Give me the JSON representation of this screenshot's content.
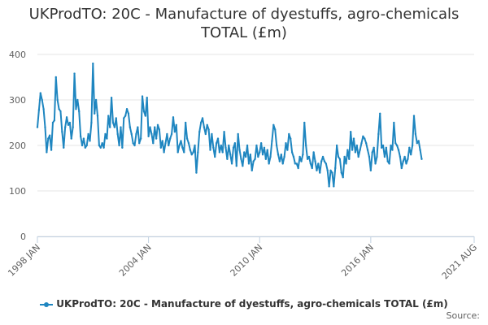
{
  "chart_data": {
    "type": "line",
    "title_line1": "UKProdTO: 20C - Manufacture of dyestuffs, agro-chemicals",
    "title_line2": "TOTAL (£m)",
    "xlabel": "",
    "ylabel": "",
    "ylim": [
      0,
      400
    ],
    "yticks": [
      0,
      100,
      200,
      300,
      400
    ],
    "x_start": "1998-01",
    "x_end": "2021-08",
    "xticks": [
      {
        "label": "1998 JAN",
        "month_index": 0
      },
      {
        "label": "2004 JAN",
        "month_index": 72
      },
      {
        "label": "2010 JAN",
        "month_index": 144
      },
      {
        "label": "2016 JAN",
        "month_index": 216
      },
      {
        "label": "2021 AUG",
        "month_index": 283
      }
    ],
    "grid": true,
    "legend_position": "bottom",
    "color": "#1f86c0",
    "series": [
      {
        "name": "UKProdTO: 20C - Manufacture of dyestuffs, agro-chemicals TOTAL (£m)",
        "anchors": [
          [
            0,
            240
          ],
          [
            1,
            278
          ],
          [
            2,
            315
          ],
          [
            3,
            300
          ],
          [
            4,
            280
          ],
          [
            5,
            240
          ],
          [
            6,
            185
          ],
          [
            7,
            215
          ],
          [
            8,
            222
          ],
          [
            9,
            190
          ],
          [
            10,
            250
          ],
          [
            11,
            255
          ],
          [
            12,
            350
          ],
          [
            13,
            300
          ],
          [
            14,
            280
          ],
          [
            15,
            275
          ],
          [
            16,
            230
          ],
          [
            17,
            195
          ],
          [
            18,
            240
          ],
          [
            19,
            262
          ],
          [
            20,
            245
          ],
          [
            21,
            250
          ],
          [
            22,
            215
          ],
          [
            23,
            240
          ],
          [
            24,
            358
          ],
          [
            25,
            280
          ],
          [
            26,
            300
          ],
          [
            27,
            275
          ],
          [
            28,
            220
          ],
          [
            29,
            200
          ],
          [
            30,
            215
          ],
          [
            31,
            195
          ],
          [
            32,
            200
          ],
          [
            33,
            225
          ],
          [
            34,
            210
          ],
          [
            35,
            250
          ],
          [
            36,
            380
          ],
          [
            37,
            270
          ],
          [
            38,
            300
          ],
          [
            39,
            265
          ],
          [
            40,
            200
          ],
          [
            41,
            195
          ],
          [
            42,
            205
          ],
          [
            43,
            195
          ],
          [
            44,
            225
          ],
          [
            45,
            215
          ],
          [
            46,
            265
          ],
          [
            47,
            240
          ],
          [
            48,
            305
          ],
          [
            49,
            250
          ],
          [
            50,
            240
          ],
          [
            51,
            260
          ],
          [
            52,
            225
          ],
          [
            53,
            200
          ],
          [
            54,
            240
          ],
          [
            55,
            195
          ],
          [
            56,
            260
          ],
          [
            57,
            265
          ],
          [
            58,
            280
          ],
          [
            59,
            270
          ],
          [
            60,
            240
          ],
          [
            61,
            225
          ],
          [
            62,
            205
          ],
          [
            63,
            200
          ],
          [
            64,
            225
          ],
          [
            65,
            240
          ],
          [
            66,
            205
          ],
          [
            67,
            215
          ],
          [
            68,
            308
          ],
          [
            69,
            275
          ],
          [
            70,
            265
          ],
          [
            71,
            305
          ],
          [
            72,
            220
          ],
          [
            73,
            240
          ],
          [
            74,
            225
          ],
          [
            75,
            205
          ],
          [
            76,
            240
          ],
          [
            77,
            215
          ],
          [
            78,
            245
          ],
          [
            79,
            235
          ],
          [
            80,
            195
          ],
          [
            81,
            210
          ],
          [
            82,
            185
          ],
          [
            83,
            205
          ],
          [
            84,
            225
          ],
          [
            85,
            200
          ],
          [
            86,
            215
          ],
          [
            87,
            225
          ],
          [
            88,
            262
          ],
          [
            89,
            230
          ],
          [
            90,
            245
          ],
          [
            91,
            185
          ],
          [
            92,
            200
          ],
          [
            93,
            210
          ],
          [
            94,
            195
          ],
          [
            95,
            185
          ],
          [
            96,
            250
          ],
          [
            97,
            215
          ],
          [
            98,
            205
          ],
          [
            99,
            190
          ],
          [
            100,
            180
          ],
          [
            101,
            185
          ],
          [
            102,
            200
          ],
          [
            103,
            140
          ],
          [
            104,
            185
          ],
          [
            105,
            230
          ],
          [
            106,
            250
          ],
          [
            107,
            260
          ],
          [
            108,
            240
          ],
          [
            109,
            225
          ],
          [
            110,
            245
          ],
          [
            111,
            235
          ],
          [
            112,
            190
          ],
          [
            113,
            225
          ],
          [
            114,
            195
          ],
          [
            115,
            175
          ],
          [
            116,
            205
          ],
          [
            117,
            215
          ],
          [
            118,
            185
          ],
          [
            119,
            200
          ],
          [
            120,
            185
          ],
          [
            121,
            230
          ],
          [
            122,
            195
          ],
          [
            123,
            170
          ],
          [
            124,
            200
          ],
          [
            125,
            180
          ],
          [
            126,
            160
          ],
          [
            127,
            195
          ],
          [
            128,
            205
          ],
          [
            129,
            155
          ],
          [
            130,
            225
          ],
          [
            131,
            190
          ],
          [
            132,
            170
          ],
          [
            133,
            155
          ],
          [
            134,
            185
          ],
          [
            135,
            175
          ],
          [
            136,
            200
          ],
          [
            137,
            160
          ],
          [
            138,
            180
          ],
          [
            139,
            145
          ],
          [
            140,
            165
          ],
          [
            141,
            170
          ],
          [
            142,
            200
          ],
          [
            143,
            175
          ],
          [
            144,
            185
          ],
          [
            145,
            205
          ],
          [
            146,
            180
          ],
          [
            147,
            195
          ],
          [
            148,
            170
          ],
          [
            149,
            190
          ],
          [
            150,
            160
          ],
          [
            151,
            175
          ],
          [
            152,
            210
          ],
          [
            153,
            245
          ],
          [
            154,
            235
          ],
          [
            155,
            200
          ],
          [
            156,
            180
          ],
          [
            157,
            165
          ],
          [
            158,
            180
          ],
          [
            159,
            160
          ],
          [
            160,
            175
          ],
          [
            161,
            205
          ],
          [
            162,
            190
          ],
          [
            163,
            225
          ],
          [
            164,
            215
          ],
          [
            165,
            185
          ],
          [
            166,
            175
          ],
          [
            167,
            160
          ],
          [
            168,
            160
          ],
          [
            169,
            150
          ],
          [
            170,
            175
          ],
          [
            171,
            165
          ],
          [
            172,
            180
          ],
          [
            173,
            250
          ],
          [
            174,
            200
          ],
          [
            175,
            170
          ],
          [
            176,
            175
          ],
          [
            177,
            160
          ],
          [
            178,
            150
          ],
          [
            179,
            185
          ],
          [
            180,
            165
          ],
          [
            181,
            145
          ],
          [
            182,
            160
          ],
          [
            183,
            140
          ],
          [
            184,
            165
          ],
          [
            185,
            175
          ],
          [
            186,
            165
          ],
          [
            187,
            160
          ],
          [
            188,
            145
          ],
          [
            189,
            110
          ],
          [
            190,
            145
          ],
          [
            191,
            140
          ],
          [
            192,
            110
          ],
          [
            193,
            150
          ],
          [
            194,
            200
          ],
          [
            195,
            175
          ],
          [
            196,
            170
          ],
          [
            197,
            140
          ],
          [
            198,
            130
          ],
          [
            199,
            175
          ],
          [
            200,
            160
          ],
          [
            201,
            190
          ],
          [
            202,
            170
          ],
          [
            203,
            230
          ],
          [
            204,
            190
          ],
          [
            205,
            215
          ],
          [
            206,
            185
          ],
          [
            207,
            200
          ],
          [
            208,
            175
          ],
          [
            209,
            190
          ],
          [
            210,
            205
          ],
          [
            211,
            220
          ],
          [
            212,
            215
          ],
          [
            213,
            205
          ],
          [
            214,
            190
          ],
          [
            215,
            175
          ],
          [
            216,
            145
          ],
          [
            217,
            185
          ],
          [
            218,
            195
          ],
          [
            219,
            160
          ],
          [
            220,
            175
          ],
          [
            221,
            225
          ],
          [
            222,
            270
          ],
          [
            223,
            195
          ],
          [
            224,
            200
          ],
          [
            225,
            175
          ],
          [
            226,
            195
          ],
          [
            227,
            165
          ],
          [
            228,
            160
          ],
          [
            229,
            200
          ],
          [
            230,
            190
          ],
          [
            231,
            250
          ],
          [
            232,
            205
          ],
          [
            233,
            200
          ],
          [
            234,
            190
          ],
          [
            235,
            175
          ],
          [
            236,
            150
          ],
          [
            237,
            165
          ],
          [
            238,
            175
          ],
          [
            239,
            160
          ],
          [
            240,
            170
          ],
          [
            241,
            195
          ],
          [
            242,
            180
          ],
          [
            243,
            200
          ],
          [
            244,
            265
          ],
          [
            245,
            225
          ],
          [
            246,
            205
          ],
          [
            247,
            210
          ],
          [
            248,
            190
          ],
          [
            249,
            170
          ]
        ]
      }
    ]
  },
  "source_label": "Source:"
}
